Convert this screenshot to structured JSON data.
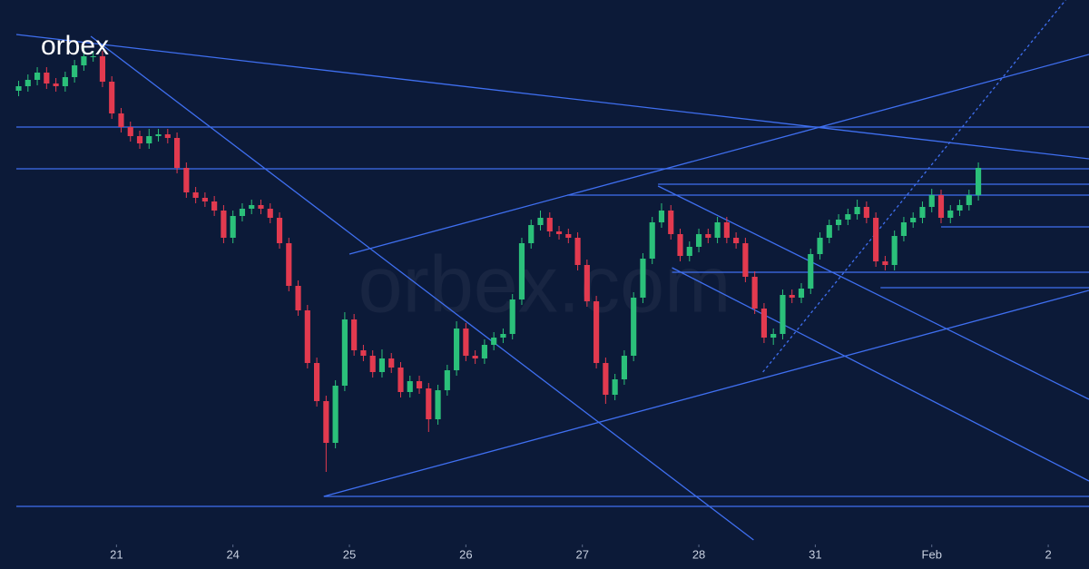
{
  "chart_data": {
    "type": "candlestick",
    "logo": "orbex",
    "watermark": "orbex.com",
    "background": "#0c1a38",
    "up_color": "#2bc07a",
    "down_color": "#e23a4f",
    "line_color": "#3f6ff0",
    "xlim": [
      -1,
      8.35
    ],
    "ylim": [
      0,
      600
    ],
    "xticks": [
      {
        "value": 0,
        "label": "21"
      },
      {
        "value": 1,
        "label": "24"
      },
      {
        "value": 2,
        "label": "25"
      },
      {
        "value": 3,
        "label": "26"
      },
      {
        "value": 4,
        "label": "27"
      },
      {
        "value": 5,
        "label": "28"
      },
      {
        "value": 6,
        "label": "31"
      },
      {
        "value": 7,
        "label": "Feb"
      },
      {
        "value": 8,
        "label": "2"
      }
    ],
    "x": [
      -0.84,
      -0.76,
      -0.68,
      -0.6,
      -0.52,
      -0.44,
      -0.36,
      -0.28,
      -0.2,
      -0.12,
      -0.04,
      0.04,
      0.12,
      0.2,
      0.28,
      0.36,
      0.44,
      0.52,
      0.6,
      0.68,
      0.76,
      0.84,
      0.92,
      1,
      1.08,
      1.16,
      1.24,
      1.32,
      1.4,
      1.48,
      1.56,
      1.64,
      1.72,
      1.8,
      1.88,
      1.96,
      2.04,
      2.12,
      2.2,
      2.28,
      2.36,
      2.44,
      2.52,
      2.6,
      2.68,
      2.76,
      2.84,
      2.92,
      3,
      3.08,
      3.16,
      3.24,
      3.32,
      3.4,
      3.48,
      3.56,
      3.64,
      3.72,
      3.8,
      3.88,
      3.96,
      4.04,
      4.12,
      4.2,
      4.28,
      4.36,
      4.44,
      4.52,
      4.6,
      4.68,
      4.76,
      4.84,
      4.92,
      5,
      5.08,
      5.16,
      5.24,
      5.32,
      5.4,
      5.48,
      5.56,
      5.64,
      5.72,
      5.8,
      5.88,
      5.96,
      6.04,
      6.12,
      6.2,
      6.28,
      6.36,
      6.44,
      6.52,
      6.6,
      6.68,
      6.76,
      6.84,
      6.92,
      7,
      7.08,
      7.16,
      7.24,
      7.32,
      7.4
    ],
    "open": [
      500,
      505,
      512,
      520,
      508,
      505,
      515,
      528,
      538,
      538,
      510,
      475,
      460,
      450,
      442,
      450,
      452,
      448,
      415,
      388,
      382,
      378,
      368,
      338,
      362,
      370,
      374,
      370,
      360,
      332,
      285,
      258,
      200,
      158,
      112,
      175,
      248,
      214,
      208,
      190,
      205,
      195,
      168,
      180,
      172,
      138,
      170,
      192,
      238,
      208,
      205,
      220,
      228,
      232,
      270,
      332,
      352,
      360,
      345,
      342,
      338,
      308,
      268,
      200,
      165,
      182,
      208,
      272,
      315,
      355,
      368,
      342,
      318,
      328,
      342,
      338,
      355,
      338,
      332,
      295,
      260,
      228,
      232,
      275,
      272,
      282,
      320,
      338,
      352,
      358,
      364,
      372,
      360,
      312,
      308,
      340,
      355,
      360,
      372,
      385,
      360,
      368,
      374,
      385
    ],
    "high": [
      511,
      518,
      526,
      526,
      514,
      521,
      534,
      548,
      544,
      544,
      516,
      481,
      466,
      456,
      458,
      458,
      458,
      454,
      421,
      394,
      388,
      384,
      374,
      368,
      376,
      380,
      380,
      376,
      366,
      338,
      291,
      264,
      206,
      164,
      181,
      256,
      254,
      220,
      214,
      215,
      211,
      201,
      186,
      186,
      178,
      176,
      198,
      246,
      244,
      214,
      226,
      234,
      238,
      276,
      338,
      358,
      368,
      366,
      351,
      348,
      344,
      314,
      274,
      206,
      188,
      214,
      278,
      321,
      361,
      376,
      374,
      348,
      334,
      348,
      348,
      361,
      361,
      344,
      338,
      301,
      266,
      238,
      281,
      281,
      288,
      326,
      344,
      358,
      364,
      370,
      380,
      378,
      366,
      318,
      346,
      361,
      366,
      378,
      392,
      391,
      374,
      380,
      391,
      421
    ],
    "low": [
      494,
      499,
      506,
      502,
      499,
      499,
      509,
      522,
      532,
      504,
      469,
      454,
      444,
      436,
      436,
      444,
      442,
      409,
      382,
      376,
      372,
      362,
      332,
      332,
      356,
      364,
      364,
      354,
      326,
      279,
      252,
      194,
      152,
      80,
      106,
      169,
      208,
      202,
      184,
      184,
      189,
      162,
      162,
      166,
      124,
      132,
      164,
      186,
      202,
      199,
      199,
      214,
      222,
      226,
      264,
      326,
      346,
      339,
      336,
      332,
      302,
      262,
      194,
      155,
      159,
      176,
      202,
      266,
      309,
      349,
      336,
      312,
      312,
      322,
      332,
      332,
      332,
      326,
      289,
      254,
      222,
      220,
      226,
      266,
      266,
      276,
      314,
      332,
      346,
      352,
      358,
      354,
      306,
      302,
      302,
      334,
      349,
      354,
      366,
      354,
      354,
      362,
      368,
      379
    ],
    "close": [
      505,
      512,
      520,
      508,
      505,
      515,
      528,
      538,
      538,
      510,
      475,
      460,
      450,
      442,
      450,
      452,
      448,
      415,
      388,
      382,
      378,
      368,
      338,
      362,
      370,
      374,
      370,
      360,
      332,
      285,
      258,
      200,
      158,
      112,
      175,
      248,
      214,
      208,
      190,
      205,
      195,
      168,
      180,
      172,
      138,
      170,
      192,
      238,
      208,
      205,
      220,
      228,
      232,
      270,
      332,
      352,
      360,
      345,
      342,
      338,
      308,
      268,
      200,
      165,
      182,
      208,
      272,
      315,
      355,
      368,
      342,
      318,
      328,
      342,
      338,
      355,
      338,
      332,
      295,
      260,
      228,
      232,
      275,
      272,
      282,
      320,
      338,
      352,
      358,
      364,
      372,
      360,
      312,
      308,
      340,
      355,
      360,
      372,
      385,
      360,
      368,
      374,
      385,
      415
    ],
    "trend_lines": [
      {
        "x": [
          -0.86,
          8.35
        ],
        "y": [
          562,
          425
        ]
      },
      {
        "x": [
          -0.86,
          8.35
        ],
        "y": [
          460,
          460
        ]
      },
      {
        "x": [
          -0.86,
          8.35
        ],
        "y": [
          414,
          414
        ]
      },
      {
        "x": [
          -0.22,
          5.47
        ],
        "y": [
          560,
          5
        ]
      },
      {
        "x": [
          2.0,
          8.35
        ],
        "y": [
          320,
          540
        ]
      },
      {
        "x": [
          1.78,
          8.35
        ],
        "y": [
          53,
          280
        ]
      },
      {
        "x": [
          1.78,
          8.35
        ],
        "y": [
          53,
          53
        ]
      },
      {
        "x": [
          -0.86,
          8.35
        ],
        "y": [
          42,
          42
        ]
      },
      {
        "x": [
          4.65,
          8.35
        ],
        "y": [
          397,
          397
        ]
      },
      {
        "x": [
          3.87,
          8.35
        ],
        "y": [
          385,
          385
        ]
      },
      {
        "x": [
          4.65,
          8.35
        ],
        "y": [
          395,
          160
        ]
      },
      {
        "x": [
          4.77,
          8.35
        ],
        "y": [
          305,
          70
        ]
      },
      {
        "x": [
          4.77,
          8.35
        ],
        "y": [
          300,
          300
        ]
      },
      {
        "x": [
          6.56,
          8.35
        ],
        "y": [
          283,
          283
        ]
      },
      {
        "x": [
          7.08,
          8.35
        ],
        "y": [
          350,
          350
        ]
      },
      {
        "x": [
          5.55,
          8.15
        ],
        "y": [
          190,
          600
        ],
        "dashed": true
      }
    ]
  }
}
